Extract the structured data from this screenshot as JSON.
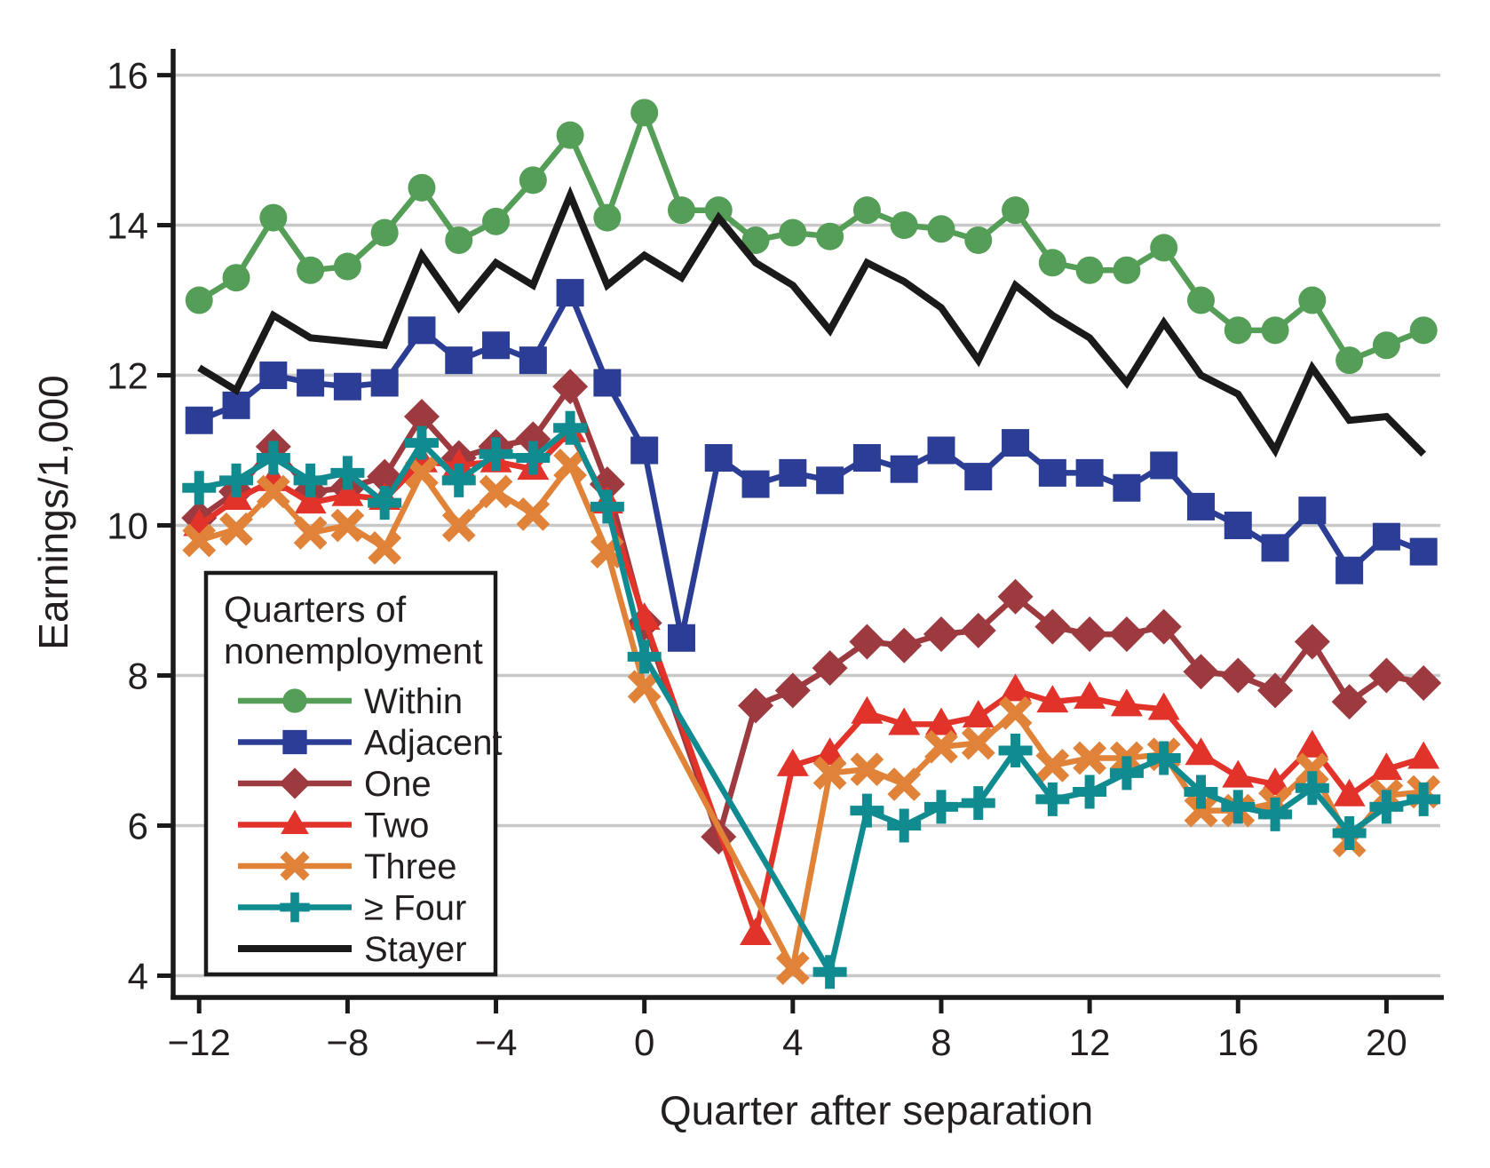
{
  "legend": {
    "title_line1": "Quarters of",
    "title_line2": "nonemployment"
  },
  "colors": {
    "axis": "#1a1a1a",
    "grid": "#c8c8c8",
    "text": "#231f20",
    "background": "#ffffff"
  },
  "chart_data": {
    "type": "line",
    "title": "",
    "xlabel": "Quarter after separation",
    "ylabel": "Earnings/1,000",
    "xlim": [
      -12.7,
      21.45
    ],
    "ylim": [
      3.71,
      16.35
    ],
    "x_ticks": [
      -12,
      -8,
      -4,
      0,
      4,
      8,
      12,
      16,
      20
    ],
    "y_ticks": [
      4,
      6,
      8,
      10,
      12,
      14,
      16
    ],
    "grid": "horizontal",
    "legend_position": "lower-left-inside",
    "x": [
      -12,
      -11,
      -10,
      -9,
      -8,
      -7,
      -6,
      -5,
      -4,
      -3,
      -2,
      -1,
      0,
      1,
      2,
      3,
      4,
      5,
      6,
      7,
      8,
      9,
      10,
      11,
      12,
      13,
      14,
      15,
      16,
      17,
      18,
      19,
      20,
      21
    ],
    "series": [
      {
        "name": "Within",
        "marker": "circle",
        "color": "#559e58",
        "line_width": 6.5,
        "values": [
          13.0,
          13.3,
          14.1,
          13.4,
          13.45,
          13.9,
          14.5,
          13.8,
          14.05,
          14.6,
          15.2,
          14.1,
          15.5,
          14.2,
          14.2,
          13.8,
          13.9,
          13.85,
          14.2,
          14.0,
          13.95,
          13.8,
          14.2,
          13.5,
          13.4,
          13.4,
          13.7,
          13.0,
          12.6,
          12.6,
          13.0,
          12.2,
          12.4,
          12.6
        ]
      },
      {
        "name": "Adjacent",
        "marker": "square",
        "color": "#2b3d94",
        "line_width": 6.5,
        "values": [
          11.4,
          11.6,
          12.0,
          11.9,
          11.85,
          11.9,
          12.6,
          12.2,
          12.4,
          12.2,
          13.1,
          11.9,
          11.0,
          8.5,
          10.9,
          10.55,
          10.7,
          10.6,
          10.9,
          10.75,
          11.0,
          10.65,
          11.1,
          10.7,
          10.7,
          10.5,
          10.8,
          10.25,
          10.0,
          9.7,
          10.2,
          9.4,
          9.85,
          9.65
        ]
      },
      {
        "name": "One",
        "marker": "diamond",
        "color": "#9c3a40",
        "line_width": 6.5,
        "values": [
          10.1,
          10.45,
          11.05,
          10.45,
          10.5,
          10.65,
          11.45,
          10.9,
          11.05,
          11.15,
          11.85,
          10.55,
          8.7,
          null,
          5.85,
          7.6,
          7.8,
          8.1,
          8.45,
          8.4,
          8.55,
          8.6,
          9.05,
          8.65,
          8.55,
          8.55,
          8.65,
          8.05,
          8.0,
          7.8,
          8.45,
          7.65,
          8.0,
          7.9
        ]
      },
      {
        "name": "Two",
        "marker": "triangle",
        "color": "#e2332b",
        "line_width": 6.5,
        "values": [
          10.0,
          10.35,
          10.6,
          10.3,
          10.4,
          10.35,
          10.85,
          10.8,
          10.85,
          10.75,
          11.25,
          10.3,
          8.75,
          null,
          null,
          4.55,
          6.8,
          6.95,
          7.5,
          7.35,
          7.35,
          7.45,
          7.8,
          7.65,
          7.7,
          7.6,
          7.55,
          6.95,
          6.65,
          6.55,
          7.05,
          6.4,
          6.75,
          6.9
        ]
      },
      {
        "name": "Three",
        "marker": "x",
        "color": "#e08238",
        "line_width": 6.5,
        "values": [
          9.8,
          9.95,
          10.45,
          9.9,
          10.0,
          9.7,
          10.7,
          10.0,
          10.45,
          10.15,
          10.8,
          9.65,
          7.85,
          null,
          null,
          null,
          4.1,
          6.7,
          6.75,
          6.55,
          7.05,
          7.1,
          7.5,
          6.8,
          6.9,
          6.9,
          6.95,
          6.2,
          6.2,
          6.3,
          6.75,
          5.8,
          6.4,
          6.45
        ]
      },
      {
        "name": "≥ Four",
        "marker": "plus",
        "color": "#108b90",
        "line_width": 6.5,
        "values": [
          10.5,
          10.6,
          10.9,
          10.6,
          10.7,
          10.3,
          11.1,
          10.6,
          10.95,
          10.9,
          11.3,
          10.25,
          8.25,
          null,
          null,
          null,
          null,
          4.05,
          6.2,
          6.0,
          6.25,
          6.3,
          7.0,
          6.35,
          6.45,
          6.7,
          6.9,
          6.45,
          6.25,
          6.15,
          6.5,
          5.9,
          6.25,
          6.35
        ]
      },
      {
        "name": "Stayer",
        "marker": "none",
        "color": "#1a1a1a",
        "line_width": 8,
        "values": [
          12.1,
          11.8,
          12.8,
          12.5,
          12.45,
          12.4,
          13.6,
          12.9,
          13.5,
          13.2,
          14.4,
          13.2,
          13.6,
          13.3,
          14.1,
          13.5,
          13.2,
          12.6,
          13.5,
          13.25,
          12.9,
          12.2,
          13.2,
          12.8,
          12.5,
          11.9,
          12.7,
          12.0,
          11.75,
          11.0,
          12.1,
          11.4,
          11.45,
          10.95
        ]
      }
    ]
  }
}
